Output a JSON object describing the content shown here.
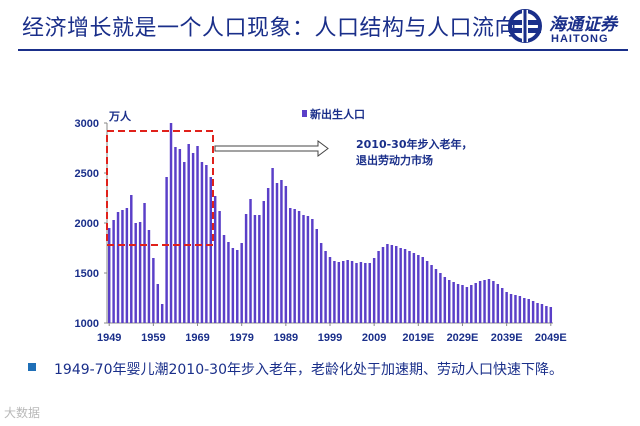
{
  "header": {
    "title": "经济增长就是一个人口现象：人口结构与人口流向"
  },
  "logo": {
    "name_cn": "海通证券",
    "name_en": "HAITONG"
  },
  "chart_data": {
    "type": "bar",
    "title": "",
    "ylabel": "万人",
    "xlabel": "",
    "ylim": [
      1000,
      3000
    ],
    "yticks": [
      1000,
      1500,
      2000,
      2500,
      3000
    ],
    "legend": "新出生人口",
    "series_name": "新出生人口",
    "start_year": 1949,
    "xtick_labels": [
      "1949",
      "1959",
      "1969",
      "1979",
      "1989",
      "1999",
      "2009",
      "2019E",
      "2029E",
      "2039E",
      "2049E"
    ],
    "values": [
      1950,
      2030,
      2110,
      2130,
      2150,
      2280,
      2000,
      2010,
      2200,
      1930,
      1650,
      1390,
      1190,
      2460,
      3000,
      2760,
      2740,
      2610,
      2790,
      2700,
      2770,
      2610,
      2580,
      2460,
      2270,
      2120,
      1880,
      1810,
      1750,
      1730,
      1800,
      2090,
      2240,
      2080,
      2080,
      2220,
      2350,
      2550,
      2400,
      2430,
      2370,
      2150,
      2140,
      2120,
      2080,
      2070,
      2040,
      1940,
      1800,
      1720,
      1660,
      1620,
      1610,
      1620,
      1630,
      1620,
      1600,
      1610,
      1600,
      1600,
      1650,
      1720,
      1760,
      1790,
      1780,
      1770,
      1750,
      1740,
      1720,
      1700,
      1680,
      1660,
      1620,
      1580,
      1540,
      1500,
      1460,
      1430,
      1410,
      1390,
      1380,
      1360,
      1380,
      1400,
      1420,
      1430,
      1440,
      1420,
      1390,
      1350,
      1310,
      1290,
      1280,
      1270,
      1250,
      1240,
      1220,
      1200,
      1190,
      1170,
      1160
    ]
  },
  "annotation": {
    "text_line1": "2010-30年步入老年，",
    "text_line2": "退出劳动力市场"
  },
  "colors": {
    "bar": "#5a3fc8",
    "highlight_box": "#e0211b",
    "title": "#1a2f8a"
  },
  "footer": {
    "bullet_text": "1949-70年婴儿潮2010-30年步入老年，老龄化处于加速期、劳动人口快速下降。",
    "watermark": "大数据"
  }
}
